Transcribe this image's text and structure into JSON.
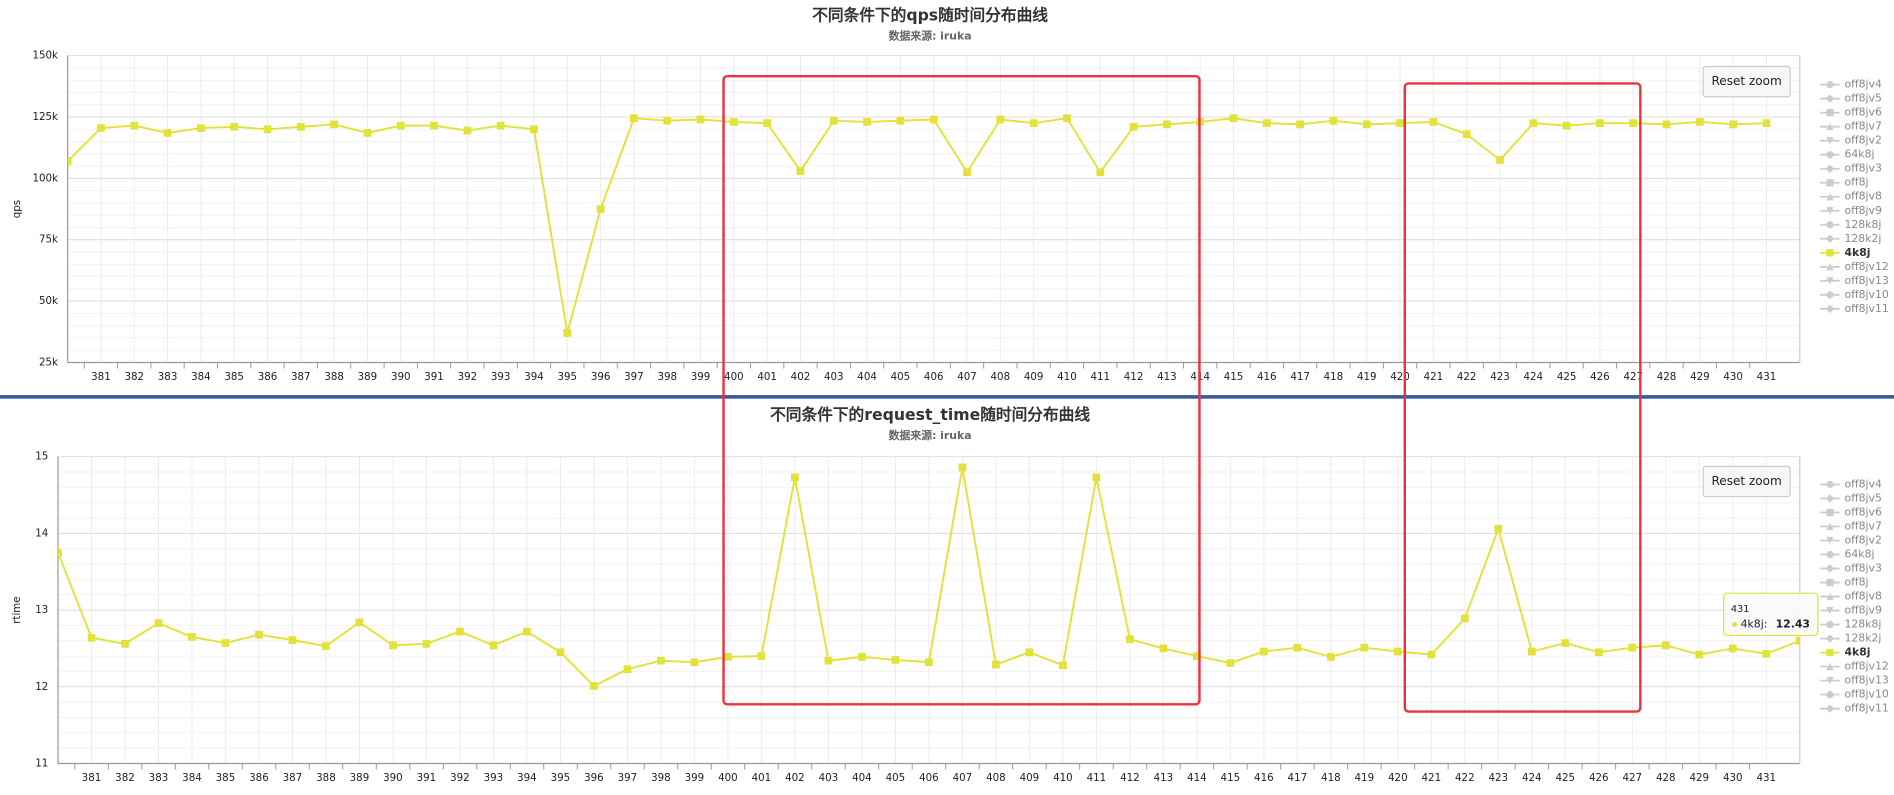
{
  "chart_data": [
    {
      "type": "line",
      "title": "不同条件下的qps随时间分布曲线",
      "subtitle": "数据来源: iruka",
      "y_label": "qps",
      "reset_button": "Reset zoom",
      "x": [
        380,
        381,
        382,
        383,
        384,
        385,
        386,
        387,
        388,
        389,
        390,
        391,
        392,
        393,
        394,
        395,
        396,
        397,
        398,
        399,
        400,
        401,
        402,
        403,
        404,
        405,
        406,
        407,
        408,
        409,
        410,
        411,
        412,
        413,
        414,
        415,
        416,
        417,
        418,
        419,
        420,
        421,
        422,
        423,
        424,
        425,
        426,
        427,
        428,
        429,
        430,
        431
      ],
      "xlim": [
        380,
        432
      ],
      "xticks": [
        381,
        382,
        383,
        384,
        385,
        386,
        387,
        388,
        389,
        390,
        391,
        392,
        393,
        394,
        395,
        396,
        397,
        398,
        399,
        400,
        401,
        402,
        403,
        404,
        405,
        406,
        407,
        408,
        409,
        410,
        411,
        412,
        413,
        414,
        415,
        416,
        417,
        418,
        419,
        420,
        421,
        422,
        423,
        424,
        425,
        426,
        427,
        428,
        429,
        430,
        431
      ],
      "ylim": [
        25000,
        150000
      ],
      "yticks": [
        {
          "value": 25000,
          "label": "25k"
        },
        {
          "value": 50000,
          "label": "50k"
        },
        {
          "value": 75000,
          "label": "75k"
        },
        {
          "value": 100000,
          "label": "100k"
        },
        {
          "value": 125000,
          "label": "125k"
        },
        {
          "value": 150000,
          "label": "150k"
        }
      ],
      "grid": true,
      "series": [
        {
          "name": "off8jv4",
          "color": "#cccccc",
          "marker": "circle",
          "visible": false
        },
        {
          "name": "off8jv5",
          "color": "#cccccc",
          "marker": "diamond",
          "visible": false
        },
        {
          "name": "off8jv6",
          "color": "#cccccc",
          "marker": "square",
          "visible": false
        },
        {
          "name": "off8jv7",
          "color": "#cccccc",
          "marker": "triangle",
          "visible": false
        },
        {
          "name": "off8jv2",
          "color": "#cccccc",
          "marker": "triangle-down",
          "visible": false
        },
        {
          "name": "64k8j",
          "color": "#cccccc",
          "marker": "circle",
          "visible": false
        },
        {
          "name": "off8jv3",
          "color": "#cccccc",
          "marker": "diamond",
          "visible": false
        },
        {
          "name": "off8j",
          "color": "#cccccc",
          "marker": "square",
          "visible": false
        },
        {
          "name": "off8jv8",
          "color": "#cccccc",
          "marker": "triangle",
          "visible": false
        },
        {
          "name": "off8jv9",
          "color": "#cccccc",
          "marker": "triangle-down",
          "visible": false
        },
        {
          "name": "128k8j",
          "color": "#cccccc",
          "marker": "circle",
          "visible": false
        },
        {
          "name": "128k2j",
          "color": "#cccccc",
          "marker": "diamond",
          "visible": false
        },
        {
          "name": "4k8j",
          "color": "#e2e23a",
          "marker": "square",
          "visible": true,
          "values": [
            107000,
            120500,
            121500,
            118500,
            120500,
            121000,
            120000,
            121000,
            122000,
            118500,
            121500,
            121500,
            119500,
            121500,
            120000,
            37000,
            87500,
            124500,
            123500,
            124000,
            123000,
            122500,
            103000,
            123500,
            123000,
            123500,
            124000,
            102500,
            124000,
            122500,
            124500,
            102500,
            121000,
            122000,
            123000,
            124500,
            122500,
            122000,
            123500,
            122000,
            122500,
            123000,
            118000,
            107500,
            122500,
            121500,
            122500,
            122500,
            122000,
            123000,
            122000,
            122500
          ]
        },
        {
          "name": "off8jv12",
          "color": "#cccccc",
          "marker": "triangle",
          "visible": false
        },
        {
          "name": "off8jv13",
          "color": "#cccccc",
          "marker": "triangle-down",
          "visible": false
        },
        {
          "name": "off8jv10",
          "color": "#cccccc",
          "marker": "circle",
          "visible": false
        },
        {
          "name": "off8jv11",
          "color": "#cccccc",
          "marker": "diamond",
          "visible": false
        }
      ]
    },
    {
      "type": "line",
      "title": "不同条件下的request_time随时间分布曲线",
      "subtitle": "数据来源: iruka",
      "y_label": "rtime",
      "reset_button": "Reset zoom",
      "x": [
        380,
        381,
        382,
        383,
        384,
        385,
        386,
        387,
        388,
        389,
        390,
        391,
        392,
        393,
        394,
        395,
        396,
        397,
        398,
        399,
        400,
        401,
        402,
        403,
        404,
        405,
        406,
        407,
        408,
        409,
        410,
        411,
        412,
        413,
        414,
        415,
        416,
        417,
        418,
        419,
        420,
        421,
        422,
        423,
        424,
        425,
        426,
        427,
        428,
        429,
        430,
        431,
        432
      ],
      "xlim": [
        380,
        432
      ],
      "xticks": [
        381,
        382,
        383,
        384,
        385,
        386,
        387,
        388,
        389,
        390,
        391,
        392,
        393,
        394,
        395,
        396,
        397,
        398,
        399,
        400,
        401,
        402,
        403,
        404,
        405,
        406,
        407,
        408,
        409,
        410,
        411,
        412,
        413,
        414,
        415,
        416,
        417,
        418,
        419,
        420,
        421,
        422,
        423,
        424,
        425,
        426,
        427,
        428,
        429,
        430,
        431
      ],
      "ylim": [
        11,
        15
      ],
      "yticks": [
        11,
        12,
        13,
        14,
        15
      ],
      "grid": true,
      "series": [
        {
          "name": "off8jv4",
          "color": "#cccccc",
          "marker": "circle",
          "visible": false
        },
        {
          "name": "off8jv5",
          "color": "#cccccc",
          "marker": "diamond",
          "visible": false
        },
        {
          "name": "off8jv6",
          "color": "#cccccc",
          "marker": "square",
          "visible": false
        },
        {
          "name": "off8jv7",
          "color": "#cccccc",
          "marker": "triangle",
          "visible": false
        },
        {
          "name": "off8jv2",
          "color": "#cccccc",
          "marker": "triangle-down",
          "visible": false
        },
        {
          "name": "64k8j",
          "color": "#cccccc",
          "marker": "circle",
          "visible": false
        },
        {
          "name": "off8jv3",
          "color": "#cccccc",
          "marker": "diamond",
          "visible": false
        },
        {
          "name": "off8j",
          "color": "#cccccc",
          "marker": "square",
          "visible": false
        },
        {
          "name": "off8jv8",
          "color": "#cccccc",
          "marker": "triangle",
          "visible": false
        },
        {
          "name": "off8jv9",
          "color": "#cccccc",
          "marker": "triangle-down",
          "visible": false
        },
        {
          "name": "128k8j",
          "color": "#cccccc",
          "marker": "circle",
          "visible": false
        },
        {
          "name": "128k2j",
          "color": "#cccccc",
          "marker": "diamond",
          "visible": false
        },
        {
          "name": "4k8j",
          "color": "#e2e23a",
          "marker": "square",
          "visible": true,
          "values": [
            13.75,
            12.64,
            12.56,
            12.83,
            12.65,
            12.57,
            12.68,
            12.61,
            12.53,
            12.84,
            12.54,
            12.56,
            12.72,
            12.54,
            12.72,
            12.45,
            12.01,
            12.23,
            12.34,
            12.32,
            12.39,
            12.4,
            14.73,
            12.34,
            12.39,
            12.35,
            12.32,
            14.86,
            12.29,
            12.45,
            12.28,
            14.73,
            12.62,
            12.5,
            12.4,
            12.31,
            12.46,
            12.51,
            12.39,
            12.51,
            12.46,
            12.42,
            12.89,
            14.06,
            12.46,
            12.57,
            12.45,
            12.51,
            12.54,
            12.42,
            12.5,
            12.43,
            12.6
          ]
        },
        {
          "name": "off8jv12",
          "color": "#cccccc",
          "marker": "triangle",
          "visible": false
        },
        {
          "name": "off8jv13",
          "color": "#cccccc",
          "marker": "triangle-down",
          "visible": false
        },
        {
          "name": "off8jv10",
          "color": "#cccccc",
          "marker": "circle",
          "visible": false
        },
        {
          "name": "off8jv11",
          "color": "#cccccc",
          "marker": "diamond",
          "visible": false
        }
      ],
      "tooltip": {
        "header": "431",
        "label": "4k8j:",
        "value": 12.43
      }
    }
  ]
}
